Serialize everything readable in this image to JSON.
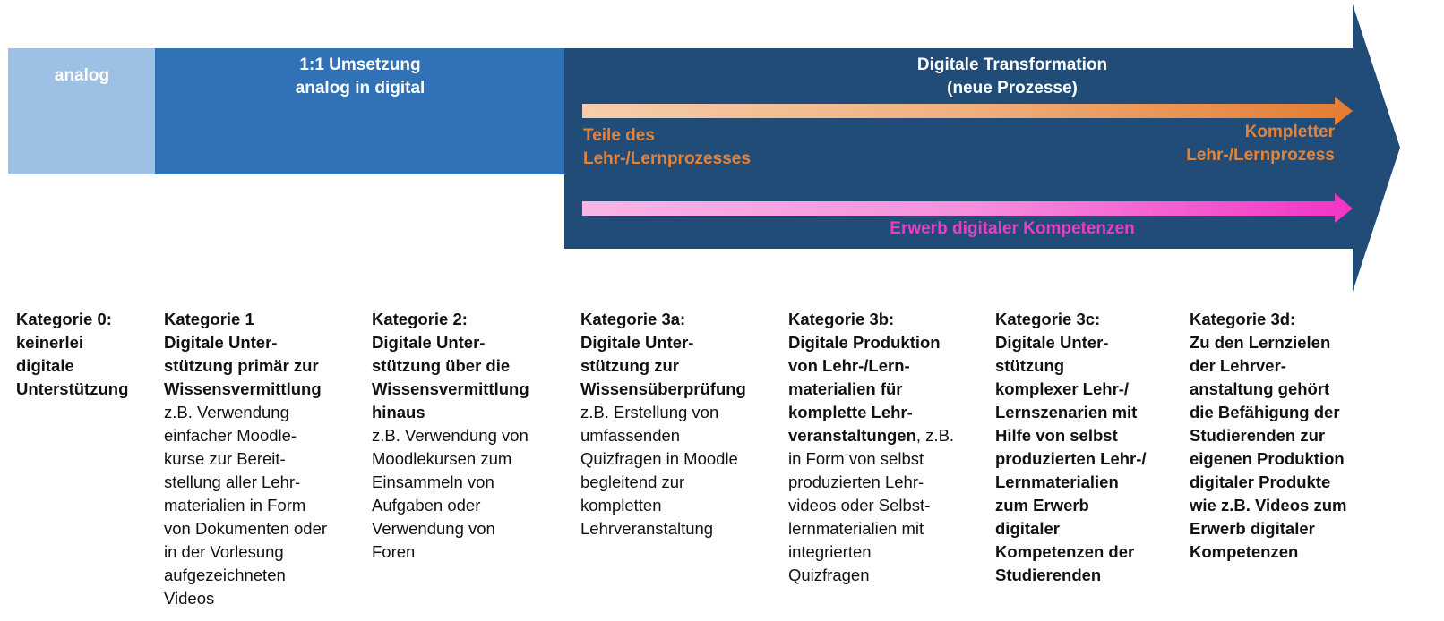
{
  "colors": {
    "analog": "#9dc0e5",
    "umsetzung": "#3072b5",
    "transformation": "#224c78",
    "orange": "#e3833a",
    "pink": "#ec3cc6"
  },
  "stages": {
    "analog": "analog",
    "umsetzung": [
      "1:1 Umsetzung",
      "analog in digital"
    ],
    "transformation": [
      "Digitale Transformation",
      "(neue Prozesse)"
    ]
  },
  "process_arrow": {
    "start_label": [
      "Teile des",
      "Lehr-/Lernprozesses"
    ],
    "end_label": [
      "Kompletter",
      "Lehr-/Lernprozess"
    ]
  },
  "competence_arrow": {
    "label": "Erwerb digitaler Kompetenzen"
  },
  "categories": [
    {
      "lines": [
        [
          [
            "Kategorie 0:",
            1
          ]
        ],
        [
          [
            "keinerlei",
            1
          ]
        ],
        [
          [
            "digitale",
            1
          ]
        ],
        [
          [
            "Unterstützung",
            1
          ]
        ]
      ]
    },
    {
      "lines": [
        [
          [
            "Kategorie 1",
            1
          ]
        ],
        [
          [
            "Digitale Unter-",
            1
          ]
        ],
        [
          [
            "stützung primär zur",
            1
          ]
        ],
        [
          [
            "Wissensvermittlung",
            1
          ]
        ],
        [
          [
            "z.B. Verwendung",
            0
          ]
        ],
        [
          [
            "einfacher Moodle-",
            0
          ]
        ],
        [
          [
            "kurse zur Bereit-",
            0
          ]
        ],
        [
          [
            "stellung aller Lehr-",
            0
          ]
        ],
        [
          [
            "materialien in Form",
            0
          ]
        ],
        [
          [
            "von Dokumenten oder",
            0
          ]
        ],
        [
          [
            "in der Vorlesung",
            0
          ]
        ],
        [
          [
            "aufgezeichneten",
            0
          ]
        ],
        [
          [
            "Videos",
            0
          ]
        ]
      ]
    },
    {
      "lines": [
        [
          [
            "Kategorie 2:",
            1
          ]
        ],
        [
          [
            "Digitale Unter-",
            1
          ]
        ],
        [
          [
            "stützung über die",
            1
          ]
        ],
        [
          [
            "Wissensvermittlung",
            1
          ]
        ],
        [
          [
            "hinaus",
            1
          ]
        ],
        [
          [
            "z.B. Verwendung von",
            0
          ]
        ],
        [
          [
            "Moodlekursen zum",
            0
          ]
        ],
        [
          [
            "Einsammeln von",
            0
          ]
        ],
        [
          [
            "Aufgaben oder",
            0
          ]
        ],
        [
          [
            "Verwendung von",
            0
          ]
        ],
        [
          [
            "Foren",
            0
          ]
        ]
      ]
    },
    {
      "lines": [
        [
          [
            "Kategorie 3a:",
            1
          ]
        ],
        [
          [
            "Digitale Unter-",
            1
          ]
        ],
        [
          [
            "stützung zur",
            1
          ]
        ],
        [
          [
            "Wissensüberprüfung",
            1
          ]
        ],
        [
          [
            "z.B. Erstellung von",
            0
          ]
        ],
        [
          [
            "umfassenden",
            0
          ]
        ],
        [
          [
            "Quizfragen in Moodle",
            0
          ]
        ],
        [
          [
            "begleitend zur",
            0
          ]
        ],
        [
          [
            "kompletten",
            0
          ]
        ],
        [
          [
            "Lehrveranstaltung",
            0
          ]
        ]
      ]
    },
    {
      "lines": [
        [
          [
            "Kategorie 3b:",
            1
          ]
        ],
        [
          [
            "Digitale Produktion",
            1
          ]
        ],
        [
          [
            "von Lehr-/Lern-",
            1
          ]
        ],
        [
          [
            "materialien für",
            1
          ]
        ],
        [
          [
            "komplette Lehr-",
            1
          ]
        ],
        [
          [
            "veranstaltungen",
            1
          ],
          [
            ", z.B.",
            0
          ]
        ],
        [
          [
            "in Form von selbst",
            0
          ]
        ],
        [
          [
            "produzierten Lehr-",
            0
          ]
        ],
        [
          [
            "videos oder Selbst-",
            0
          ]
        ],
        [
          [
            "lernmaterialien mit",
            0
          ]
        ],
        [
          [
            "integrierten",
            0
          ]
        ],
        [
          [
            "Quizfragen",
            0
          ]
        ]
      ]
    },
    {
      "lines": [
        [
          [
            "Kategorie 3c:",
            1
          ]
        ],
        [
          [
            "Digitale Unter-",
            1
          ]
        ],
        [
          [
            "stützung",
            1
          ]
        ],
        [
          [
            "komplexer Lehr-/",
            1
          ]
        ],
        [
          [
            "Lernszenarien mit",
            1
          ]
        ],
        [
          [
            "Hilfe von selbst",
            1
          ]
        ],
        [
          [
            "produzierten Lehr-/",
            1
          ]
        ],
        [
          [
            "Lernmaterialien",
            1
          ]
        ],
        [
          [
            "zum Erwerb",
            1
          ]
        ],
        [
          [
            "digitaler",
            1
          ]
        ],
        [
          [
            "Kompetenzen der",
            1
          ]
        ],
        [
          [
            "Studierenden",
            1
          ]
        ]
      ]
    },
    {
      "lines": [
        [
          [
            "Kategorie 3d:",
            1
          ]
        ],
        [
          [
            "Zu den Lernzielen",
            1
          ]
        ],
        [
          [
            "der Lehrver-",
            1
          ]
        ],
        [
          [
            "anstaltung gehört",
            1
          ]
        ],
        [
          [
            "die Befähigung der",
            1
          ]
        ],
        [
          [
            "Studierenden zur",
            1
          ]
        ],
        [
          [
            "eigenen Produktion",
            1
          ]
        ],
        [
          [
            "digitaler Produkte",
            1
          ]
        ],
        [
          [
            "wie z.B. Videos zum",
            1
          ]
        ],
        [
          [
            "Erwerb digitaler",
            1
          ]
        ],
        [
          [
            "Kompetenzen",
            1
          ]
        ]
      ]
    }
  ]
}
